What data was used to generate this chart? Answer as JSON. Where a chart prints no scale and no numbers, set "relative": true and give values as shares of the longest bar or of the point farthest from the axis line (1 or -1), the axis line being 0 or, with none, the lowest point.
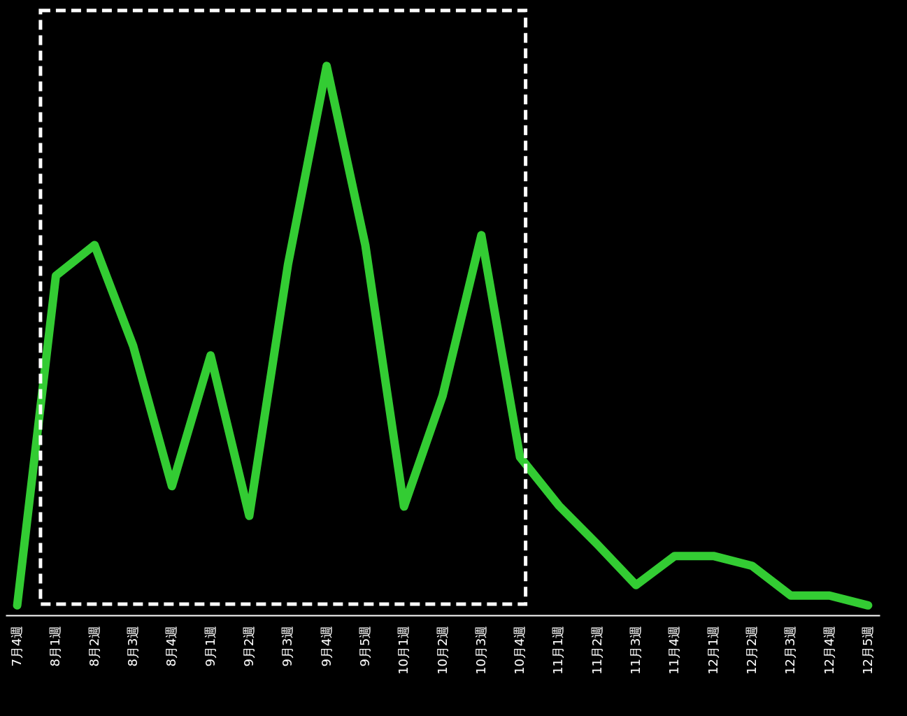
{
  "chart_data": {
    "type": "line",
    "relative": true,
    "categories": [
      "7月4週",
      "8月1週",
      "8月2週",
      "8月3週",
      "8月4週",
      "9月1週",
      "9月2週",
      "9月3週",
      "9月4週",
      "9月5週",
      "10月1週",
      "10月2週",
      "10月3週",
      "10月4週",
      "11月1週",
      "11月2週",
      "11月3週",
      "11月4週",
      "12月1週",
      "12月2週",
      "12月3週",
      "12月4週",
      "12月5週"
    ],
    "series": [
      {
        "color": "#33cc33",
        "values": [
          0.018,
          0.618,
          0.674,
          0.49,
          0.235,
          0.473,
          0.181,
          0.638,
          1,
          0.674,
          0.198,
          0.4,
          0.692,
          0.288,
          0.2,
          0.129,
          0.055,
          0.108,
          0.108,
          0.09,
          0.036,
          0.036,
          0.018
        ]
      }
    ],
    "grid": false
  }
}
